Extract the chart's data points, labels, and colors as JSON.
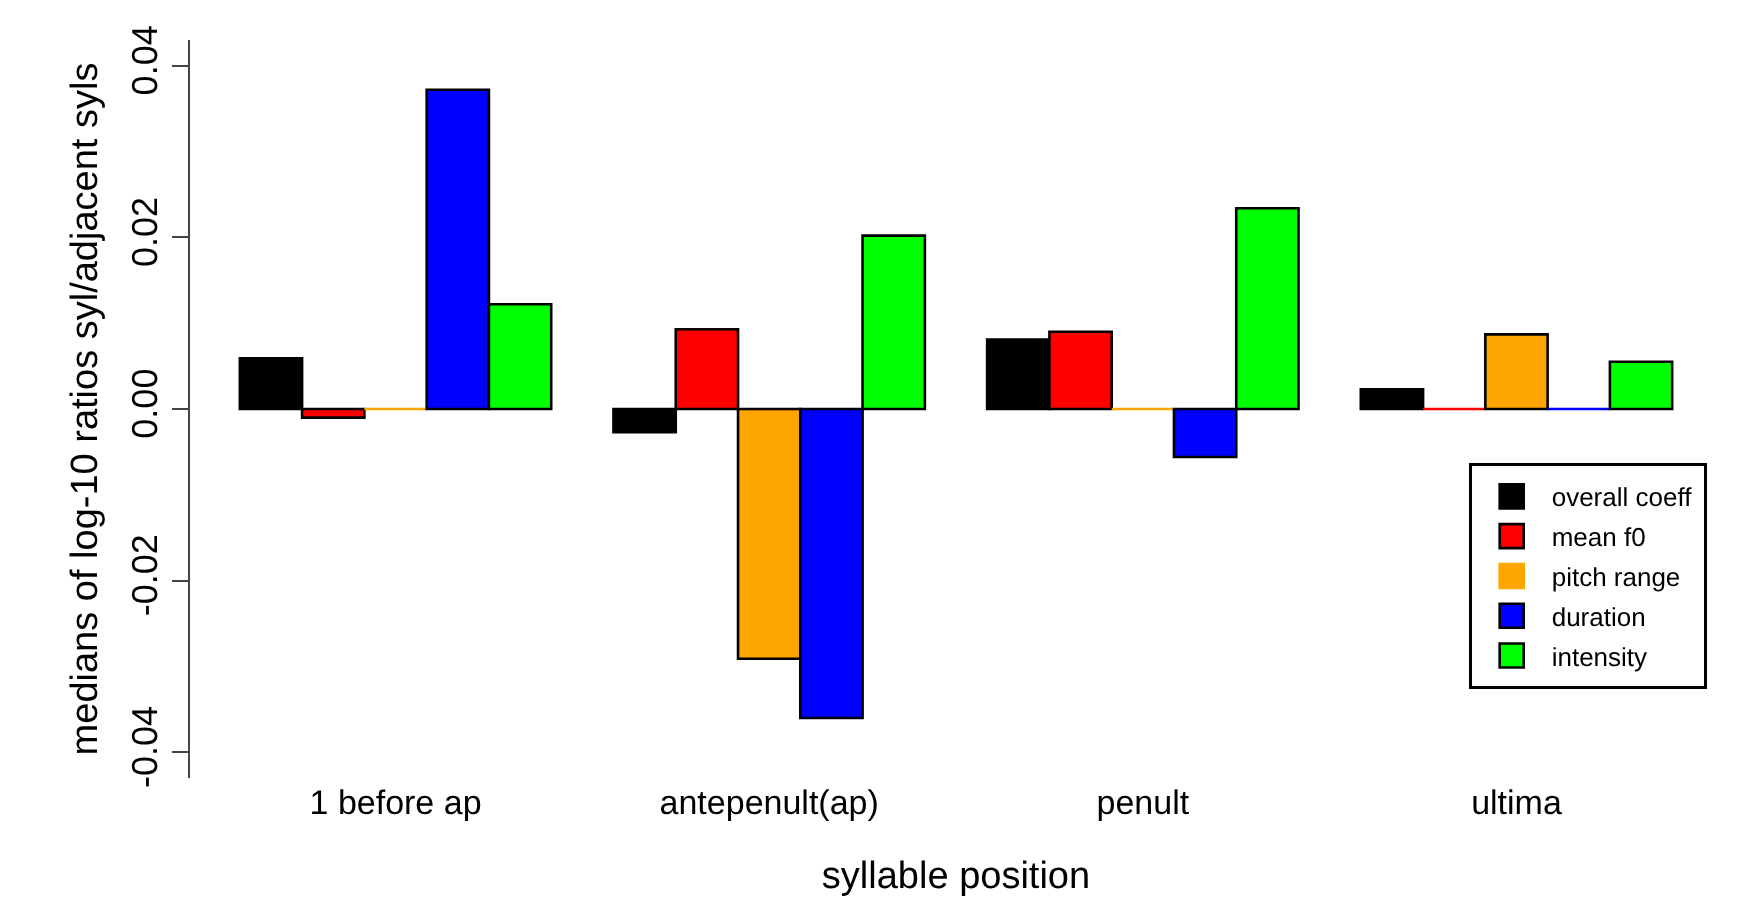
{
  "chart_data": {
    "type": "bar",
    "xlabel": "syllable position",
    "ylabel": "medians of log-10 ratios syl/adjacent syls",
    "categories": [
      "1 before ap",
      "antepenult(ap)",
      "penult",
      "ultima"
    ],
    "series": [
      {
        "name": "overall coeff",
        "color": "#000000",
        "values": [
          0.0059,
          -0.0027,
          0.0081,
          0.0023
        ]
      },
      {
        "name": "mean f0",
        "color": "#ff0000",
        "values": [
          -0.001,
          0.0093,
          0.009,
          0
        ]
      },
      {
        "name": "pitch range",
        "color": "#ffa500",
        "values": [
          0,
          -0.0291,
          0,
          0.0087
        ]
      },
      {
        "name": "duration",
        "color": "#0000ff",
        "values": [
          0.0372,
          -0.036,
          -0.0056,
          0
        ]
      },
      {
        "name": "intensity",
        "color": "#00ff00",
        "values": [
          0.0122,
          0.0202,
          0.0234,
          0.0055
        ]
      }
    ],
    "ylim": [
      -0.043,
      0.043
    ],
    "yticks": [
      {
        "value": -0.04,
        "label": "-0.04"
      },
      {
        "value": -0.02,
        "label": "-0.02"
      },
      {
        "value": 0,
        "label": "0.00"
      },
      {
        "value": 0.02,
        "label": "0.02"
      },
      {
        "value": 0.04,
        "label": "0.04"
      }
    ],
    "legend": "bottom right"
  }
}
